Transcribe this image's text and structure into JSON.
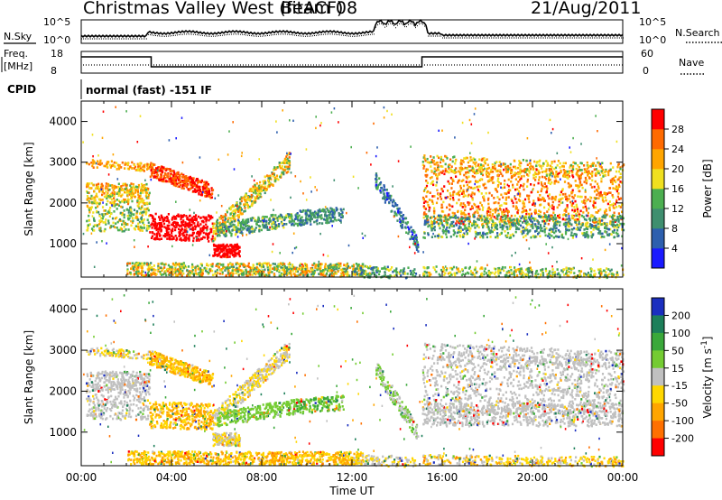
{
  "header": {
    "station": "Christmas Valley West (fitACF)",
    "beam": "Beam 08",
    "date": "21/Aug/2011"
  },
  "strips": {
    "nsky_label": "N.Sky",
    "nsky_ticks": [
      "10^5",
      "10^0"
    ],
    "nsearch_label": "N.Search",
    "nsearch_ticks": [
      "10^5",
      "10^0"
    ],
    "freq_label": "Freq.",
    "freq_unit": "[MHz]",
    "freq_ticks": [
      "18",
      "8"
    ],
    "nave_label": "Nave",
    "nave_ticks": [
      "60",
      "0"
    ],
    "cpid_label": "CPID",
    "cpid_text": "normal (fast) -151 IF"
  },
  "chart_data": [
    {
      "type": "heatmap",
      "name": "power",
      "ylabel": "Slant Range [km]",
      "xlabel": "",
      "y_ticks": [
        1000,
        2000,
        3000,
        4000
      ],
      "ylim": [
        180,
        4500
      ],
      "xlim_hours": [
        0,
        24
      ],
      "colorbar_label": "Power [dB]",
      "colorbar_ticks": [
        "4",
        "8",
        "12",
        "16",
        "20",
        "24",
        "28"
      ],
      "colorbar_colors": [
        "#1a1aff",
        "#2d5fae",
        "#3f8f6f",
        "#4caf50",
        "#f0e020",
        "#ffa500",
        "#ff6a00",
        "#ff0000"
      ]
    },
    {
      "type": "heatmap",
      "name": "velocity",
      "ylabel": "Slant Range [km]",
      "xlabel": "Time UT",
      "x_ticks": [
        "00:00",
        "04:00",
        "08:00",
        "12:00",
        "16:00",
        "20:00",
        "00:00"
      ],
      "y_ticks": [
        1000,
        2000,
        3000,
        4000
      ],
      "ylim": [
        180,
        4500
      ],
      "xlim_hours": [
        0,
        24
      ],
      "colorbar_label": "Velocity [m s",
      "colorbar_label_sup": "-1",
      "colorbar_label_end": "]",
      "colorbar_ticks": [
        "200",
        "100",
        "50",
        "15",
        "-15",
        "-50",
        "-100",
        "-200"
      ],
      "colorbar_colors": [
        "#1b2fbf",
        "#1d7f5a",
        "#3aa83a",
        "#74cc32",
        "#c0c0c0",
        "#ffd700",
        "#ffa500",
        "#ff7000",
        "#ff0000"
      ]
    }
  ]
}
